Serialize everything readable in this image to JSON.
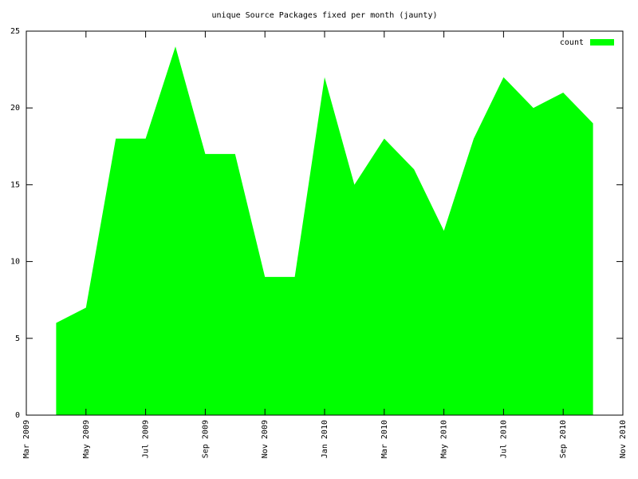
{
  "chart_data": {
    "type": "area",
    "title": "unique Source Packages fixed per month (jaunty)",
    "x": [
      "2009-04",
      "2009-05",
      "2009-06",
      "2009-07",
      "2009-08",
      "2009-09",
      "2009-10",
      "2009-11",
      "2009-12",
      "2010-01",
      "2010-02",
      "2010-03",
      "2010-04",
      "2010-05",
      "2010-06",
      "2010-07",
      "2010-08",
      "2010-09",
      "2010-10"
    ],
    "series": [
      {
        "name": "count",
        "color": "#00ff00",
        "values": [
          6,
          7,
          18,
          18,
          24,
          17,
          17,
          9,
          9,
          22,
          15,
          18,
          16,
          12,
          18,
          22,
          20,
          21,
          19
        ]
      }
    ],
    "xlim": [
      "2009-03",
      "2010-11"
    ],
    "xticks": [
      {
        "value": "2009-03",
        "label": "Mar 2009"
      },
      {
        "value": "2009-05",
        "label": "May 2009"
      },
      {
        "value": "2009-07",
        "label": "Jul 2009"
      },
      {
        "value": "2009-09",
        "label": "Sep 2009"
      },
      {
        "value": "2009-11",
        "label": "Nov 2009"
      },
      {
        "value": "2010-01",
        "label": "Jan 2010"
      },
      {
        "value": "2010-03",
        "label": "Mar 2010"
      },
      {
        "value": "2010-05",
        "label": "May 2010"
      },
      {
        "value": "2010-07",
        "label": "Jul 2010"
      },
      {
        "value": "2010-09",
        "label": "Sep 2010"
      },
      {
        "value": "2010-11",
        "label": "Nov 2010"
      }
    ],
    "ylim": [
      0,
      25
    ],
    "yticks": [
      0,
      5,
      10,
      15,
      20,
      25
    ],
    "grid": false,
    "legend": "top-right"
  }
}
